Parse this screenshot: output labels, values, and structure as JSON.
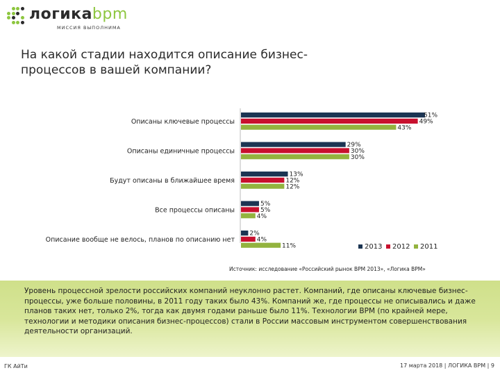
{
  "header": {
    "logo_brand_main": "логика",
    "logo_brand_accent": "bpm",
    "logo_tagline": "МИССИЯ ВЫПОЛНИМА",
    "title": "На какой стадии находится описание бизнес-процессов в вашей компании?"
  },
  "colors": {
    "series_2013": "#1c3553",
    "series_2012": "#c8102e",
    "series_2011": "#93b33f",
    "logo_dark": "#2b2b2b",
    "logo_green": "#8dc63f",
    "band": "#d8e69a"
  },
  "chart_data": {
    "type": "bar",
    "orientation": "horizontal",
    "categories": [
      "Описаны ключевые процессы",
      "Описаны единичные процессы",
      "Будут описаны в ближайшее время",
      "Все процессы описаны",
      "Описание вообще не велось, планов по описанию нет"
    ],
    "series": [
      {
        "name": "2013",
        "values": [
          51,
          29,
          13,
          5,
          2
        ],
        "labels": [
          "51%",
          "29%",
          "13%",
          "5%",
          "2%"
        ]
      },
      {
        "name": "2012",
        "values": [
          49,
          30,
          12,
          5,
          4
        ],
        "labels": [
          "49%",
          "30%",
          "12%",
          "5%",
          "4%"
        ]
      },
      {
        "name": "2011",
        "values": [
          43,
          30,
          12,
          4,
          11
        ],
        "labels": [
          "43%",
          "30%",
          "12%",
          "4%",
          "11%"
        ]
      }
    ],
    "xlim": [
      0,
      51
    ],
    "grid": false,
    "legend": "bottom-right"
  },
  "source": "Источник: исследование «Российский рынок BPM 2013», «Логика BPM»",
  "summary": "Уровень процессной зрелости российских компаний неуклонно растет. Компаний, где описаны ключевые бизнес-процессы, уже больше половины, в 2011 году таких было 43%. Компаний же, где процессы не описывались и даже планов таких нет, только 2%, тогда как двумя годами раньше было 11%. Технологии BPM (по крайней мере, технологии и методики описания бизнес-процессов) стали в России массовым инструментом совершенствования деятельности организаций.",
  "footer": {
    "left": "ГК АйТи",
    "right": "17 марта 2018  |  ЛОГИКА BPM  |  9"
  }
}
